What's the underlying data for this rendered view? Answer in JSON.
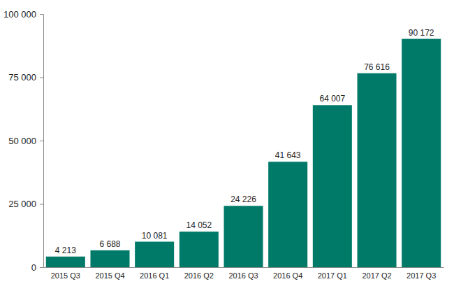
{
  "chart_data": {
    "type": "bar",
    "categories": [
      "2015 Q3",
      "2015 Q4",
      "2016 Q1",
      "2016 Q2",
      "2016 Q3",
      "2016 Q4",
      "2017 Q1",
      "2017 Q2",
      "2017 Q3"
    ],
    "values": [
      4213,
      6688,
      10081,
      14052,
      24226,
      41643,
      64007,
      76616,
      90172
    ],
    "value_labels": [
      "4 213",
      "6 688",
      "10 081",
      "14 052",
      "24 226",
      "41 643",
      "64 007",
      "76 616",
      "90 172"
    ],
    "color": "#007a68",
    "ylim": [
      0,
      100000
    ],
    "yticks": [
      0,
      {
        "value": 25000,
        "label": "25 000"
      },
      {
        "value": 50000,
        "label": "50 000"
      },
      {
        "value": 75000,
        "label": "75 000"
      },
      {
        "value": 100000,
        "label": "100 000"
      }
    ],
    "data_labels": true,
    "grid": false
  }
}
